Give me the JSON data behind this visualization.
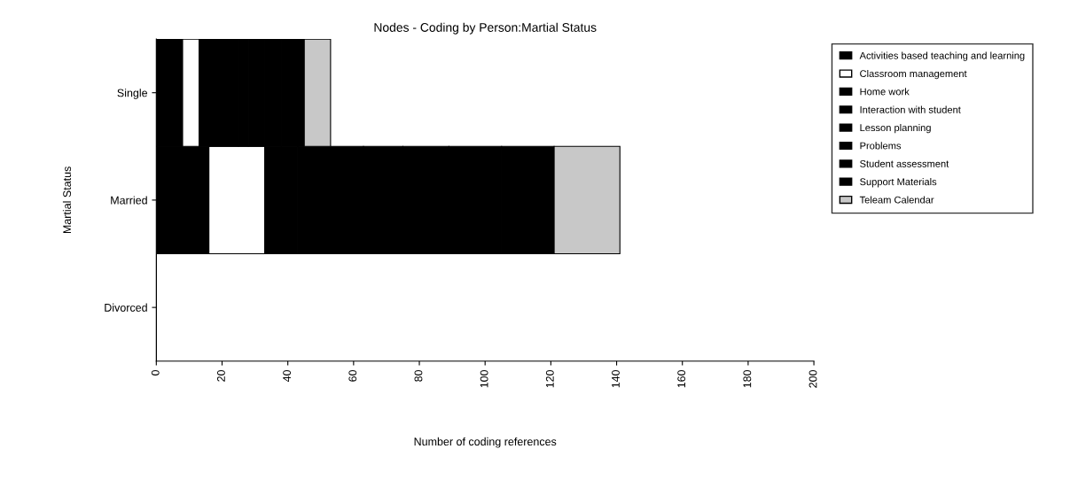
{
  "chart_data": {
    "type": "bar",
    "orientation": "horizontal",
    "stacked": true,
    "title": "Nodes - Coding by Person:Martial Status",
    "xlabel": "Number of coding references",
    "ylabel": "Martial Status",
    "categories": [
      "Single",
      "Married",
      "Divorced"
    ],
    "series": [
      {
        "name": "Activities based teaching and learning",
        "color": "#000000",
        "values": [
          8,
          16,
          0
        ]
      },
      {
        "name": "Classroom management",
        "color": "#ffffff",
        "values": [
          5,
          17,
          0
        ]
      },
      {
        "name": "Home work",
        "color": "#000000",
        "values": [
          3,
          10,
          0
        ]
      },
      {
        "name": "Interaction with student",
        "color": "#000000",
        "values": [
          9,
          20,
          0
        ]
      },
      {
        "name": "Lesson planning",
        "color": "#000000",
        "values": [
          3,
          12,
          0
        ]
      },
      {
        "name": "Problems",
        "color": "#000000",
        "values": [
          5,
          14,
          0
        ]
      },
      {
        "name": "Student assessment",
        "color": "#000000",
        "values": [
          5,
          16,
          0
        ]
      },
      {
        "name": "Support Materials",
        "color": "#000000",
        "values": [
          7,
          16,
          0
        ]
      },
      {
        "name": "Teleam Calendar",
        "color": "#c8c8c8",
        "values": [
          8,
          20,
          0
        ]
      }
    ],
    "xlim": [
      0,
      200
    ],
    "xticks": [
      0,
      20,
      40,
      60,
      80,
      100,
      120,
      140,
      160,
      180,
      200
    ],
    "grid": false,
    "legend": "right"
  }
}
